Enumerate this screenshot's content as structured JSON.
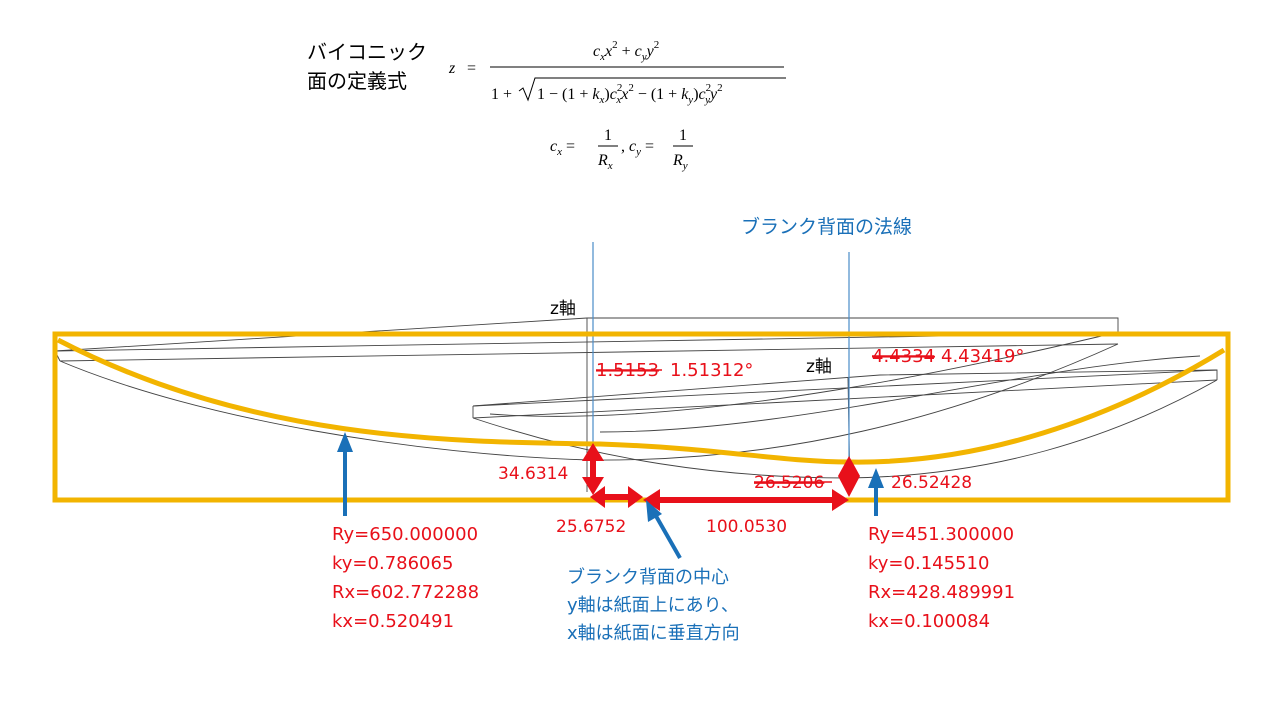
{
  "formula": {
    "caption_line1": "バイコニック",
    "caption_line2": "面の定義式"
  },
  "labels": {
    "normal_title": "ブランク背面の法線",
    "z_axis_left": "z軸",
    "z_axis_right": "z軸",
    "angle_left_old": "1.5153",
    "angle_left_new": "1.51312°",
    "angle_right_old": "4.4334",
    "angle_right_new": "4.43419°",
    "height_left": "34.6314",
    "height_right_old": "26.5206",
    "height_right_new": "26.52428",
    "dist_left": "25.6752",
    "dist_right": "100.0530",
    "center_line1": "ブランク背面の中心",
    "center_line2": "y軸は紙面上にあり、",
    "center_line3": "x軸は紙面に垂直方向"
  },
  "params_left": {
    "ry": "Ry=650.000000",
    "ky": "ky=0.786065",
    "rx": "Rx=602.772288",
    "kx": "kx=0.520491"
  },
  "params_right": {
    "ry": "Ry=451.300000",
    "ky": "ky=0.145510",
    "rx": "Rx=428.489991",
    "kx": "kx=0.100084"
  },
  "colors": {
    "red": "#e8101a",
    "blue": "#1a70b8",
    "gold": "#f2b400",
    "thin_blue": "#4a8cc8",
    "outline": "#444444"
  }
}
